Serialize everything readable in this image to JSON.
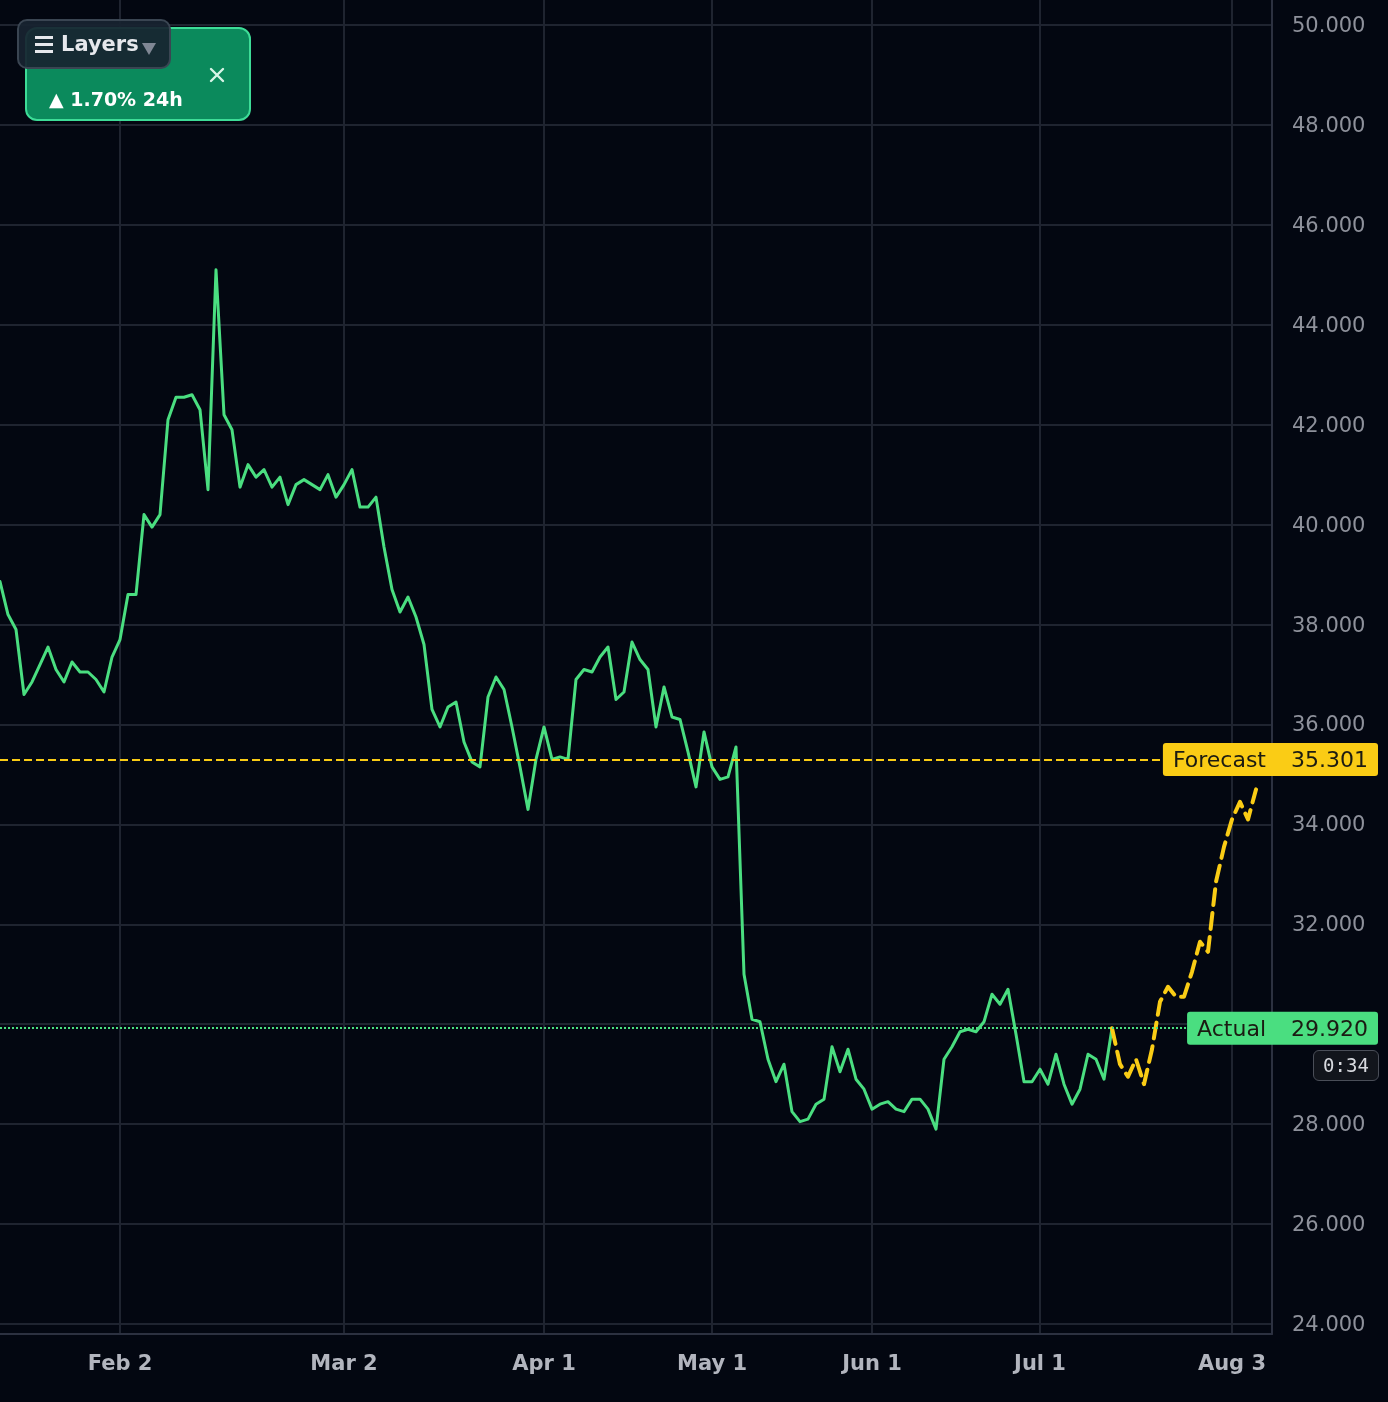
{
  "chart_data": {
    "type": "line",
    "categories": [
      null,
      null,
      null,
      null,
      null,
      null,
      null,
      null,
      null,
      null,
      null,
      null,
      null,
      null,
      null,
      "Feb 2",
      null,
      null,
      null,
      null,
      null,
      null,
      null,
      null,
      null,
      null,
      null,
      null,
      null,
      null,
      null,
      null,
      null,
      null,
      null,
      null,
      null,
      null,
      null,
      null,
      null,
      null,
      null,
      "Mar 2",
      null,
      null,
      null,
      null,
      null,
      null,
      null,
      null,
      null,
      null,
      null,
      null,
      null,
      null,
      null,
      null,
      null,
      null,
      null,
      null,
      null,
      null,
      null,
      null,
      "Apr 1",
      null,
      null,
      null,
      null,
      null,
      null,
      null,
      null,
      null,
      null,
      null,
      null,
      null,
      null,
      null,
      null,
      null,
      null,
      null,
      null,
      "May 1",
      null,
      null,
      null,
      null,
      null,
      null,
      null,
      null,
      null,
      null,
      null,
      null,
      null,
      null,
      null,
      null,
      null,
      null,
      null,
      "Jun 1",
      null,
      null,
      null,
      null,
      null,
      null,
      null,
      null,
      null,
      null,
      null,
      null,
      null,
      null,
      null,
      null,
      null,
      null,
      null,
      null,
      "Jul 1",
      null,
      null,
      null,
      null,
      null,
      null,
      null,
      null,
      null,
      null,
      null,
      null,
      null,
      null,
      null,
      null,
      null,
      null,
      null,
      null,
      null,
      null,
      null,
      "Aug 3",
      null,
      null,
      null,
      null,
      null
    ],
    "series": [
      {
        "color": "#4ade80",
        "line_style": "solid",
        "values": [
          38.86,
          38.2,
          37.9,
          36.6,
          36.85,
          37.2,
          37.55,
          37.1,
          36.85,
          37.25,
          37.05,
          37.05,
          36.9,
          36.65,
          37.35,
          37.7,
          38.6,
          38.6,
          40.2,
          39.95,
          40.2,
          42.1,
          42.55,
          42.55,
          42.6,
          42.3,
          40.7,
          45.1,
          42.2,
          41.9,
          40.75,
          41.2,
          40.95,
          41.1,
          40.75,
          40.95,
          40.4,
          40.8,
          40.9,
          40.8,
          40.7,
          41.0,
          40.55,
          40.8,
          41.1,
          40.35,
          40.35,
          40.55,
          39.55,
          38.7,
          38.25,
          38.55,
          38.15,
          37.6,
          36.3,
          35.95,
          36.35,
          36.45,
          35.65,
          35.25,
          35.15,
          36.55,
          36.95,
          36.7,
          35.95,
          35.15,
          34.3,
          35.3,
          35.95,
          35.3,
          35.35,
          35.3,
          36.9,
          37.1,
          37.05,
          37.35,
          37.55,
          36.5,
          36.65,
          37.65,
          37.3,
          37.1,
          35.95,
          36.75,
          36.15,
          36.1,
          35.45,
          34.75,
          35.85,
          35.15,
          34.9,
          34.95,
          35.55,
          31.0,
          30.1,
          30.05,
          29.3,
          28.85,
          29.2,
          28.25,
          28.05,
          28.1,
          28.4,
          28.5,
          29.55,
          29.05,
          29.5,
          28.9,
          28.7,
          28.3,
          28.4,
          28.45,
          28.3,
          28.25,
          28.5,
          28.5,
          28.3,
          27.9,
          29.3,
          29.55,
          29.85,
          29.9,
          29.85,
          30.05,
          30.6,
          30.4,
          30.7,
          29.8,
          28.85,
          28.85,
          29.1,
          28.8,
          29.4,
          28.8,
          28.4,
          28.7,
          29.4,
          29.3,
          28.9,
          29.92,
          null,
          null,
          null,
          null,
          null,
          null,
          null,
          null,
          null,
          null,
          null,
          null,
          null,
          null,
          null,
          null,
          null,
          null,
          null,
          null
        ]
      },
      {
        "color": "#facc15",
        "line_style": "dashed",
        "values": [
          null,
          null,
          null,
          null,
          null,
          null,
          null,
          null,
          null,
          null,
          null,
          null,
          null,
          null,
          null,
          null,
          null,
          null,
          null,
          null,
          null,
          null,
          null,
          null,
          null,
          null,
          null,
          null,
          null,
          null,
          null,
          null,
          null,
          null,
          null,
          null,
          null,
          null,
          null,
          null,
          null,
          null,
          null,
          null,
          null,
          null,
          null,
          null,
          null,
          null,
          null,
          null,
          null,
          null,
          null,
          null,
          null,
          null,
          null,
          null,
          null,
          null,
          null,
          null,
          null,
          null,
          null,
          null,
          null,
          null,
          null,
          null,
          null,
          null,
          null,
          null,
          null,
          null,
          null,
          null,
          null,
          null,
          null,
          null,
          null,
          null,
          null,
          null,
          null,
          null,
          null,
          null,
          null,
          null,
          null,
          null,
          null,
          null,
          null,
          null,
          null,
          null,
          null,
          null,
          null,
          null,
          null,
          null,
          null,
          null,
          null,
          null,
          null,
          null,
          null,
          null,
          null,
          null,
          null,
          null,
          null,
          null,
          null,
          null,
          null,
          null,
          null,
          null,
          null,
          null,
          null,
          null,
          null,
          null,
          null,
          null,
          null,
          null,
          null,
          29.92,
          29.2,
          28.95,
          29.3,
          28.8,
          29.5,
          30.45,
          30.75,
          30.55,
          30.55,
          31.05,
          31.65,
          31.45,
          32.85,
          33.55,
          34.1,
          34.45,
          34.1,
          34.7,
          null,
          null
        ]
      }
    ],
    "ylim": [
      23.8,
      50.5
    ],
    "yticks": [
      {
        "value": 24,
        "label": "24.000"
      },
      {
        "value": 26,
        "label": "26.000"
      },
      {
        "value": 28,
        "label": "28.000"
      },
      {
        "value": 30,
        "label": null
      },
      {
        "value": 32,
        "label": "32.000"
      },
      {
        "value": 34,
        "label": "34.000"
      },
      {
        "value": 36,
        "label": "36.000"
      },
      {
        "value": 38,
        "label": "38.000"
      },
      {
        "value": 40,
        "label": "40.000"
      },
      {
        "value": 42,
        "label": "42.000"
      },
      {
        "value": 44,
        "label": "44.000"
      },
      {
        "value": 46,
        "label": "46.000"
      },
      {
        "value": 48,
        "label": "48.000"
      },
      {
        "value": 50,
        "label": "50.000"
      }
    ],
    "ref_lines": [
      {
        "axis": "y",
        "value": 35.301,
        "label": "Forecast",
        "color": "#facc15",
        "line_style": "dashed"
      },
      {
        "axis": "y",
        "value": 29.92,
        "label": "Actual",
        "color": "#4ade80",
        "line_style": "dotted"
      }
    ],
    "annotations": [
      "▲ 1.70% 24h",
      "Layers",
      "0:34",
      "35.301",
      "29.920"
    ],
    "grid": true
  }
}
